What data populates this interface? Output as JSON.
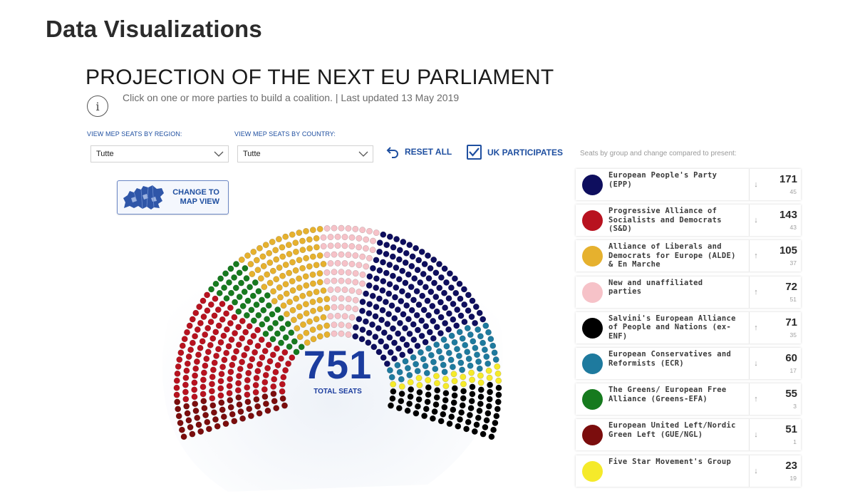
{
  "page": {
    "heading": "Data Visualizations"
  },
  "viz": {
    "title": "PROJECTION OF THE NEXT EU PARLIAMENT",
    "subtitle": "Click on one or more parties to build a coalition. | Last updated 13 May 2019",
    "info_icon": "info-icon"
  },
  "filters": {
    "region": {
      "label": "VIEW MEP SEATS BY REGION:",
      "value": "Tutte"
    },
    "country": {
      "label": "VIEW MEP SEATS BY COUNTRY:",
      "value": "Tutte"
    }
  },
  "controls": {
    "reset_label": "RESET ALL",
    "reset_icon": "undo-icon",
    "uk_label": "UK PARTICIPATES",
    "uk_checked": true,
    "map_button_label": "CHANGE TO\nMAP VIEW",
    "map_button_icon": "europe-map-icon"
  },
  "legend_caption": "Seats by group and change compared to present:",
  "chart": {
    "total": "751",
    "total_label": "TOTAL SEATS"
  },
  "chart_data": {
    "type": "parliament",
    "total_seats": 751,
    "series": [
      {
        "name": "European United Left/Nordic Green Left (GUE/NGL)",
        "seats": 51,
        "color": "#7b0d0d"
      },
      {
        "name": "Progressive Alliance of Socialists and Democrats (S&D)",
        "seats": 143,
        "color": "#b8121f"
      },
      {
        "name": "The Greens/ European Free Alliance (Greens-EFA)",
        "seats": 55,
        "color": "#167a1e"
      },
      {
        "name": "Alliance of Liberals and Democrats for Europe (ALDE) & En Marche",
        "seats": 105,
        "color": "#e6b12e"
      },
      {
        "name": "New and unaffiliated parties",
        "seats": 72,
        "color": "#f6c2c8"
      },
      {
        "name": "European People's Party (EPP)",
        "seats": 171,
        "color": "#0e0e5e"
      },
      {
        "name": "European Conservatives and Reformists (ECR)",
        "seats": 60,
        "color": "#1e7a9e"
      },
      {
        "name": "Five Star Movement's Group",
        "seats": 23,
        "color": "#f5ea2a"
      },
      {
        "name": "Salvini's European Alliance of People and Nations (ex-ENF)",
        "seats": 71,
        "color": "#000000"
      }
    ]
  },
  "parties": [
    {
      "name": "European People's Party (EPP)",
      "seats": "171",
      "change": "45",
      "trend": "down",
      "color": "#0e0e5e"
    },
    {
      "name": "Progressive Alliance of Socialists and Democrats (S&D)",
      "seats": "143",
      "change": "43",
      "trend": "down",
      "color": "#b8121f"
    },
    {
      "name": "Alliance of Liberals and Democrats for Europe (ALDE) & En Marche",
      "seats": "105",
      "change": "37",
      "trend": "up",
      "color": "#e6b12e"
    },
    {
      "name": "New and unaffiliated parties",
      "seats": "72",
      "change": "51",
      "trend": "up",
      "color": "#f6c2c8"
    },
    {
      "name": "Salvini's European Alliance of People and Nations (ex-ENF)",
      "seats": "71",
      "change": "35",
      "trend": "up",
      "color": "#000000"
    },
    {
      "name": "European Conservatives and Reformists (ECR)",
      "seats": "60",
      "change": "17",
      "trend": "down",
      "color": "#1e7a9e"
    },
    {
      "name": "The Greens/ European Free Alliance (Greens-EFA)",
      "seats": "55",
      "change": "3",
      "trend": "up",
      "color": "#167a1e"
    },
    {
      "name": "European United Left/Nordic Green Left (GUE/NGL)",
      "seats": "51",
      "change": "1",
      "trend": "down",
      "color": "#7b0d0d"
    },
    {
      "name": "Five Star Movement's Group",
      "seats": "23",
      "change": "19",
      "trend": "down",
      "color": "#f5ea2a"
    }
  ]
}
